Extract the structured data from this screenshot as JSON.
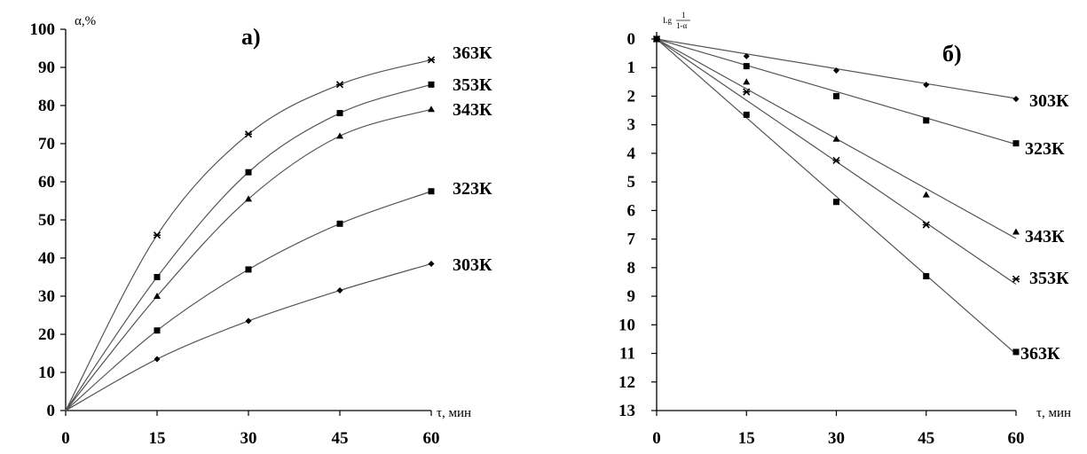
{
  "chart_data": [
    {
      "type": "line",
      "panel_label": "а)",
      "xlabel": "τ, мин",
      "ylabel": "α,%",
      "x": [
        0,
        15,
        30,
        45,
        60
      ],
      "x_ticks": [
        "0",
        "15",
        "30",
        "45",
        "60"
      ],
      "y_ticks": [
        "0",
        "10",
        "20",
        "30",
        "40",
        "50",
        "60",
        "70",
        "80",
        "90",
        "100"
      ],
      "ylim": [
        0,
        100
      ],
      "grid": false,
      "series": [
        {
          "name": "363К",
          "marker": "star",
          "values": [
            0,
            46,
            72.5,
            85.5,
            92
          ]
        },
        {
          "name": "353К",
          "marker": "square",
          "values": [
            0,
            35,
            62.5,
            78,
            85.5
          ]
        },
        {
          "name": "343К",
          "marker": "triangle",
          "values": [
            0,
            30,
            55.5,
            72,
            79
          ]
        },
        {
          "name": "323К",
          "marker": "square",
          "values": [
            0,
            21,
            37,
            49,
            57.5
          ]
        },
        {
          "name": "303К",
          "marker": "diamond",
          "values": [
            0,
            13.5,
            23.5,
            31.5,
            38.5
          ]
        }
      ]
    },
    {
      "type": "scatter",
      "panel_label": "б)",
      "xlabel": "τ, мин",
      "ylabel_main": "Lg",
      "ylabel_num": "1",
      "ylabel_den": "1-α",
      "x": [
        0,
        15,
        30,
        45,
        60
      ],
      "x_ticks": [
        "0",
        "15",
        "30",
        "45",
        "60"
      ],
      "y_ticks": [
        "0",
        "1",
        "2",
        "3",
        "4",
        "5",
        "6",
        "7",
        "8",
        "9",
        "10",
        "11",
        "12",
        "13"
      ],
      "ylim": [
        0,
        13
      ],
      "y_inverted": true,
      "grid": false,
      "series": [
        {
          "name": "303К",
          "marker": "diamond",
          "values": [
            0,
            0.6,
            1.1,
            1.6,
            2.1
          ]
        },
        {
          "name": "323К",
          "marker": "square",
          "values": [
            0,
            0.95,
            2.0,
            2.85,
            3.65
          ]
        },
        {
          "name": "343К",
          "marker": "triangle",
          "values": [
            0,
            1.5,
            3.5,
            5.45,
            6.75
          ]
        },
        {
          "name": "353К",
          "marker": "star",
          "values": [
            0,
            1.85,
            4.25,
            6.5,
            8.4
          ]
        },
        {
          "name": "363К",
          "marker": "square",
          "values": [
            0,
            2.65,
            5.7,
            8.3,
            10.95
          ]
        }
      ]
    }
  ]
}
